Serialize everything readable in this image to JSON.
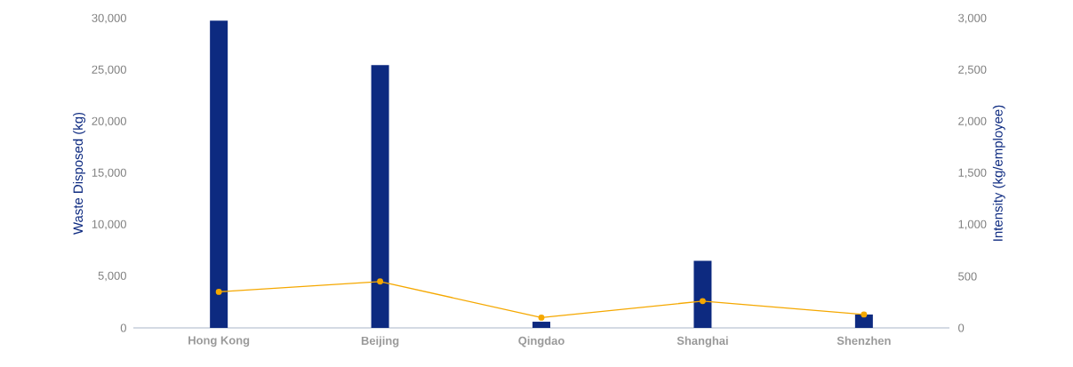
{
  "chart_data": {
    "type": "bar",
    "categories": [
      "Hong Kong",
      "Beijing",
      "Qingdao",
      "Shanghai",
      "Shenzhen"
    ],
    "ylabel": "Waste Disposed (kg)",
    "y2label": "Intensity (kg/employee)",
    "ylim": [
      0,
      30000
    ],
    "yticks": [
      0,
      {
        "value": 5000,
        "label": "5,000"
      },
      {
        "value": 10000,
        "label": "10,000"
      },
      {
        "value": 15000,
        "label": "15,000"
      },
      {
        "value": 20000,
        "label": "20,000"
      },
      {
        "value": 25000,
        "label": "25,000"
      },
      {
        "value": 30000,
        "label": "30,000"
      }
    ],
    "y2lim": [
      0,
      3000
    ],
    "y2ticks": [
      0,
      500,
      {
        "value": 1000,
        "label": "1,000"
      },
      {
        "value": 1500,
        "label": "1,500"
      },
      {
        "value": 2000,
        "label": "2,000"
      },
      {
        "value": 2500,
        "label": "2,500"
      },
      {
        "value": 3000,
        "label": "3,000"
      }
    ],
    "grid": false,
    "legend": false,
    "marker": "circle",
    "series": [
      {
        "color": "#0d2a80",
        "values": [
          29800,
          25500,
          600,
          6500,
          1300
        ]
      },
      {
        "type": "line",
        "axis": "y2",
        "color": "#f5a800",
        "values": [
          350,
          450,
          100,
          260,
          130
        ]
      }
    ]
  }
}
